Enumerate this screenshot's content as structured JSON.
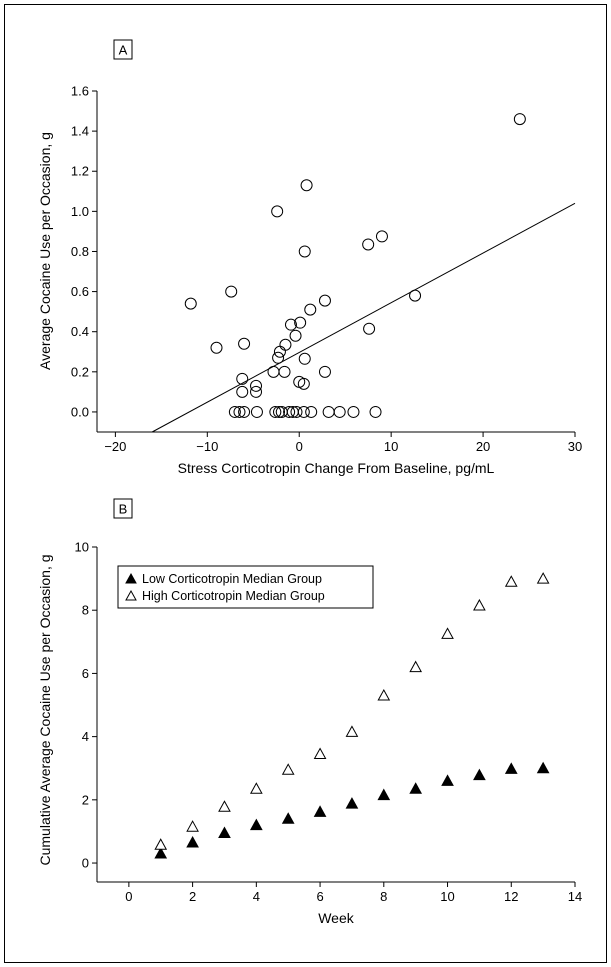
{
  "chart_data": [
    {
      "panel_label": "A",
      "type": "scatter",
      "xlabel": "Stress Corticotropin Change From Baseline, pg/mL",
      "ylabel": "Average Cocaine Use per Occasion, g",
      "xlim": [
        -22,
        30
      ],
      "ylim": [
        -0.1,
        1.6
      ],
      "xticks": [
        -20,
        -10,
        0,
        10,
        20,
        30
      ],
      "yticks": [
        0.0,
        0.2,
        0.4,
        0.6,
        0.8,
        1.0,
        1.2,
        1.4,
        1.6
      ],
      "ytick_format": 1,
      "grid": false,
      "marker": "open-circle",
      "points": [
        {
          "x": 24.0,
          "y": 1.46
        },
        {
          "x": 0.8,
          "y": 1.13
        },
        {
          "x": -2.4,
          "y": 1.0
        },
        {
          "x": 9.0,
          "y": 0.875
        },
        {
          "x": 7.5,
          "y": 0.835
        },
        {
          "x": 0.6,
          "y": 0.8
        },
        {
          "x": -7.4,
          "y": 0.6
        },
        {
          "x": 12.6,
          "y": 0.58
        },
        {
          "x": 2.8,
          "y": 0.555
        },
        {
          "x": -11.8,
          "y": 0.54
        },
        {
          "x": 1.2,
          "y": 0.51
        },
        {
          "x": 0.1,
          "y": 0.445
        },
        {
          "x": -0.9,
          "y": 0.435
        },
        {
          "x": 7.6,
          "y": 0.415
        },
        {
          "x": -0.4,
          "y": 0.38
        },
        {
          "x": -1.5,
          "y": 0.335
        },
        {
          "x": -6.0,
          "y": 0.34
        },
        {
          "x": -9.0,
          "y": 0.32
        },
        {
          "x": -2.1,
          "y": 0.3
        },
        {
          "x": -2.3,
          "y": 0.27
        },
        {
          "x": 0.6,
          "y": 0.265
        },
        {
          "x": -2.8,
          "y": 0.2
        },
        {
          "x": -1.6,
          "y": 0.2
        },
        {
          "x": 2.8,
          "y": 0.2
        },
        {
          "x": -6.2,
          "y": 0.165
        },
        {
          "x": 0.0,
          "y": 0.15
        },
        {
          "x": 0.5,
          "y": 0.14
        },
        {
          "x": -4.7,
          "y": 0.13
        },
        {
          "x": -6.2,
          "y": 0.1
        },
        {
          "x": -4.7,
          "y": 0.1
        },
        {
          "x": -7.0,
          "y": 0.0
        },
        {
          "x": -6.5,
          "y": 0.0
        },
        {
          "x": -6.0,
          "y": 0.0
        },
        {
          "x": -4.6,
          "y": 0.0
        },
        {
          "x": -2.6,
          "y": 0.0
        },
        {
          "x": -2.2,
          "y": 0.0
        },
        {
          "x": -1.9,
          "y": 0.0
        },
        {
          "x": -1.1,
          "y": 0.0
        },
        {
          "x": -0.7,
          "y": 0.0
        },
        {
          "x": -0.3,
          "y": 0.0
        },
        {
          "x": 0.5,
          "y": 0.0
        },
        {
          "x": 1.3,
          "y": 0.0
        },
        {
          "x": 3.2,
          "y": 0.0
        },
        {
          "x": 4.4,
          "y": 0.0
        },
        {
          "x": 5.9,
          "y": 0.0
        },
        {
          "x": 8.3,
          "y": 0.0
        }
      ],
      "fit_line": {
        "x": [
          -16.0,
          30.0
        ],
        "y": [
          -0.1,
          1.04
        ]
      }
    },
    {
      "panel_label": "B",
      "type": "scatter",
      "xlabel": "Week",
      "ylabel": "Cumulative Average Cocaine Use per Occasion, g",
      "xlim": [
        -1,
        14
      ],
      "ylim": [
        -0.6,
        10
      ],
      "xticks": [
        0,
        2,
        4,
        6,
        8,
        10,
        12,
        14
      ],
      "yticks": [
        0,
        2,
        4,
        6,
        8,
        10
      ],
      "ytick_format": 0,
      "grid": false,
      "legend": "top-left",
      "series": [
        {
          "name": "Low Corticotropin Median Group",
          "marker": "filled-triangle",
          "x": [
            1,
            2,
            3,
            4,
            5,
            6,
            7,
            8,
            9,
            10,
            11,
            12,
            13
          ],
          "values": [
            0.3,
            0.65,
            0.95,
            1.2,
            1.4,
            1.62,
            1.88,
            2.15,
            2.35,
            2.6,
            2.78,
            2.98,
            3.0
          ]
        },
        {
          "name": "High Corticotropin Median Group",
          "marker": "open-triangle",
          "x": [
            1,
            2,
            3,
            4,
            5,
            6,
            7,
            8,
            9,
            10,
            11,
            12,
            13
          ],
          "values": [
            0.58,
            1.15,
            1.78,
            2.35,
            2.95,
            3.45,
            4.15,
            5.3,
            6.2,
            7.25,
            8.15,
            8.9,
            9.0
          ]
        }
      ]
    }
  ]
}
